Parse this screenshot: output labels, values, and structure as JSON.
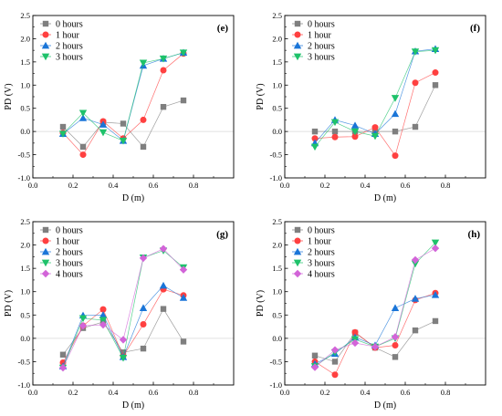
{
  "figure": {
    "background": "#ffffff"
  },
  "chart_data": [
    {
      "type": "line",
      "panel_label": "(e)",
      "xlabel": "D (m)",
      "ylabel": "PD (V)",
      "xlim": [
        0.0,
        1.0
      ],
      "ylim": [
        -1.0,
        2.5
      ],
      "xticks": [
        "0.0",
        "0.2",
        "0.4",
        "0.6",
        "0.8"
      ],
      "yticks": [
        "-1.0",
        "-0.5",
        "0.0",
        "0.5",
        "1.0",
        "1.5",
        "2.0",
        "2.5"
      ],
      "zero_line": true,
      "legend_position": "top-left",
      "x": [
        0.15,
        0.25,
        0.35,
        0.45,
        0.55,
        0.65,
        0.75
      ],
      "series": [
        {
          "name": "0 hours",
          "color": "#7f7f7f",
          "marker": "square",
          "values": [
            0.1,
            -0.33,
            0.2,
            0.17,
            -0.33,
            0.53,
            0.67
          ]
        },
        {
          "name": "1 hour",
          "color": "#ff4040",
          "marker": "circle",
          "values": [
            -0.03,
            -0.5,
            0.22,
            -0.15,
            0.25,
            1.32,
            1.68
          ]
        },
        {
          "name": "2 hours",
          "color": "#1a75d8",
          "marker": "triangle-up",
          "values": [
            -0.05,
            0.29,
            0.15,
            -0.2,
            1.42,
            1.57,
            1.7
          ]
        },
        {
          "name": "3 hours",
          "color": "#1ec26a",
          "marker": "triangle-down",
          "values": [
            -0.05,
            0.4,
            -0.02,
            -0.2,
            1.48,
            1.57,
            1.7
          ]
        }
      ]
    },
    {
      "type": "line",
      "panel_label": "(f)",
      "xlabel": "D (m)",
      "ylabel": "PD (V)",
      "xlim": [
        0.0,
        1.0
      ],
      "ylim": [
        -1.0,
        2.5
      ],
      "xticks": [
        "0.0",
        "0.2",
        "0.4",
        "0.6",
        "0.8"
      ],
      "yticks": [
        "-1.0",
        "-0.5",
        "0.0",
        "0.5",
        "1.0",
        "1.5",
        "2.0",
        "2.5"
      ],
      "zero_line": true,
      "legend_position": "top-left",
      "x": [
        0.15,
        0.25,
        0.35,
        0.45,
        0.55,
        0.65,
        0.75
      ],
      "series": [
        {
          "name": "0 hours",
          "color": "#7f7f7f",
          "marker": "square",
          "values": [
            0.0,
            0.0,
            0.0,
            0.0,
            0.0,
            0.1,
            1.0
          ]
        },
        {
          "name": "1 hour",
          "color": "#ff4040",
          "marker": "circle",
          "values": [
            -0.15,
            -0.12,
            -0.11,
            0.09,
            -0.52,
            1.05,
            1.27
          ]
        },
        {
          "name": "2 hours",
          "color": "#1a75d8",
          "marker": "triangle-up",
          "values": [
            -0.25,
            0.25,
            0.13,
            -0.05,
            0.38,
            1.73,
            1.78
          ]
        },
        {
          "name": "3 hours",
          "color": "#1ec26a",
          "marker": "triangle-down",
          "values": [
            -0.33,
            0.2,
            0.0,
            -0.1,
            0.72,
            1.72,
            1.75
          ]
        }
      ]
    },
    {
      "type": "line",
      "panel_label": "(g)",
      "xlabel": "D (m)",
      "ylabel": "PD (V)",
      "xlim": [
        0.0,
        1.0
      ],
      "ylim": [
        -1.0,
        2.5
      ],
      "xticks": [
        "0.0",
        "0.2",
        "0.4",
        "0.6",
        "0.8"
      ],
      "yticks": [
        "-1.0",
        "-0.5",
        "0.0",
        "0.5",
        "1.0",
        "1.5",
        "2.0",
        "2.5"
      ],
      "zero_line": true,
      "legend_position": "top-left",
      "x": [
        0.15,
        0.25,
        0.35,
        0.45,
        0.55,
        0.65,
        0.75
      ],
      "series": [
        {
          "name": "0 hours",
          "color": "#7f7f7f",
          "marker": "square",
          "values": [
            -0.35,
            0.22,
            0.35,
            -0.3,
            -0.22,
            0.63,
            -0.07
          ]
        },
        {
          "name": "1 hour",
          "color": "#ff4040",
          "marker": "circle",
          "values": [
            -0.52,
            0.27,
            0.62,
            -0.38,
            0.3,
            1.05,
            0.92
          ]
        },
        {
          "name": "2 hours",
          "color": "#1a75d8",
          "marker": "triangle-up",
          "values": [
            -0.6,
            0.49,
            0.5,
            -0.4,
            0.65,
            1.13,
            0.87
          ]
        },
        {
          "name": "3 hours",
          "color": "#1ec26a",
          "marker": "triangle-down",
          "values": [
            -0.63,
            0.43,
            0.39,
            -0.42,
            1.73,
            1.88,
            1.52
          ]
        },
        {
          "name": "4 hours",
          "color": "#d264d8",
          "marker": "diamond",
          "values": [
            -0.63,
            0.27,
            0.29,
            -0.03,
            1.72,
            1.92,
            1.47
          ]
        }
      ]
    },
    {
      "type": "line",
      "panel_label": "(h)",
      "xlabel": "D (m)",
      "ylabel": "PD (V)",
      "xlim": [
        0.0,
        1.0
      ],
      "ylim": [
        -1.0,
        2.5
      ],
      "xticks": [
        "0.0",
        "0.2",
        "0.4",
        "0.6",
        "0.8"
      ],
      "yticks": [
        "-1.0",
        "-0.5",
        "0.0",
        "0.5",
        "1.0",
        "1.5",
        "2.0",
        "2.5"
      ],
      "zero_line": true,
      "legend_position": "top-left",
      "x": [
        0.15,
        0.25,
        0.35,
        0.45,
        0.55,
        0.65,
        0.75
      ],
      "series": [
        {
          "name": "0 hours",
          "color": "#7f7f7f",
          "marker": "square",
          "values": [
            -0.37,
            -0.5,
            0.12,
            -0.2,
            -0.4,
            0.17,
            0.37
          ]
        },
        {
          "name": "1 hour",
          "color": "#ff4040",
          "marker": "circle",
          "values": [
            -0.5,
            -0.78,
            0.13,
            -0.2,
            -0.15,
            0.82,
            0.97
          ]
        },
        {
          "name": "2 hours",
          "color": "#1a75d8",
          "marker": "triangle-up",
          "values": [
            -0.55,
            -0.33,
            0.02,
            -0.15,
            0.65,
            0.85,
            0.93
          ]
        },
        {
          "name": "3 hours",
          "color": "#1ec26a",
          "marker": "triangle-down",
          "values": [
            -0.6,
            -0.3,
            -0.02,
            -0.18,
            0.0,
            1.6,
            2.05
          ]
        },
        {
          "name": "4 hours",
          "color": "#d264d8",
          "marker": "diamond",
          "values": [
            -0.62,
            -0.25,
            -0.1,
            -0.18,
            0.03,
            1.68,
            1.93
          ]
        }
      ]
    }
  ]
}
